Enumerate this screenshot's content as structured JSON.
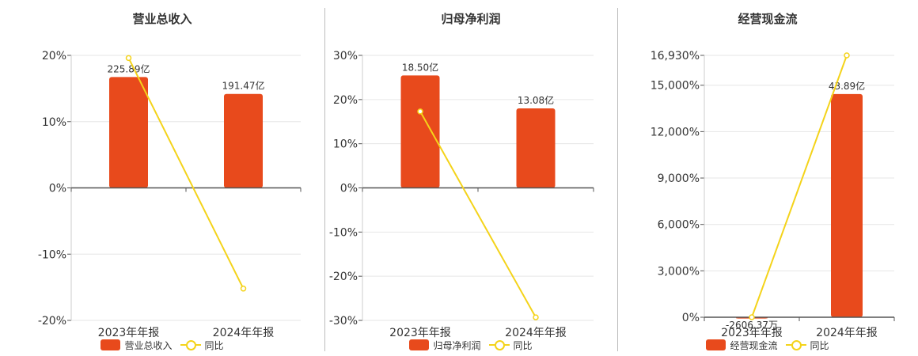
{
  "colors": {
    "bar": "#e84a1c",
    "line": "#f4d31a",
    "axis": "#555555",
    "grid": "#e6e6e6",
    "divider": "#bcbcbc"
  },
  "chart_data": [
    {
      "type": "bar",
      "title": "营业总收入",
      "categories": [
        "2023年年报",
        "2024年年报"
      ],
      "bar_series": {
        "name": "营业总收入",
        "values": [
          225.89,
          191.47
        ],
        "labels": [
          "225.89亿",
          "191.47亿"
        ]
      },
      "line_series": {
        "name": "同比",
        "values": [
          19.6,
          -15.2
        ]
      },
      "bar_ylim": [
        -270,
        270
      ],
      "yoy_ylim": [
        -20,
        20
      ],
      "yticks": [
        20,
        10,
        0,
        -10,
        -20
      ],
      "ytick_labels": [
        "20%",
        "10%",
        "0%",
        "-10%",
        "-20%"
      ],
      "legend": [
        "营业总收入",
        "同比"
      ],
      "legend_position": "bottom",
      "grid": true
    },
    {
      "type": "bar",
      "title": "归母净利润",
      "categories": [
        "2023年年报",
        "2024年年报"
      ],
      "bar_series": {
        "name": "归母净利润",
        "values": [
          18.5,
          13.08
        ],
        "labels": [
          "18.50亿",
          "13.08亿"
        ]
      },
      "line_series": {
        "name": "同比",
        "values": [
          17.3,
          -29.3
        ]
      },
      "bar_ylim": [
        -21.8,
        21.8
      ],
      "yoy_ylim": [
        -30,
        30
      ],
      "yticks": [
        30,
        20,
        10,
        0,
        -10,
        -20,
        -30
      ],
      "ytick_labels": [
        "30%",
        "20%",
        "10%",
        "0%",
        "-10%",
        "-20%",
        "-30%"
      ],
      "legend": [
        "归母净利润",
        "同比"
      ],
      "legend_position": "bottom",
      "grid": true
    },
    {
      "type": "bar",
      "title": "经营现金流",
      "categories": [
        "2023年年报",
        "2024年年报"
      ],
      "bar_series": {
        "name": "经营现金流",
        "values": [
          -0.26,
          43.89
        ],
        "labels": [
          "-2606.37万",
          "43.89亿"
        ]
      },
      "line_series": {
        "name": "同比",
        "values": [
          0,
          16930
        ]
      },
      "bar_ylim": [
        0,
        51.5
      ],
      "yoy_ylim": [
        0,
        16930
      ],
      "yticks": [
        16930,
        15000,
        12000,
        9000,
        6000,
        3000,
        0
      ],
      "ytick_labels": [
        "16,930%",
        "15,000%",
        "12,000%",
        "9,000%",
        "6,000%",
        "3,000%",
        "0%"
      ],
      "legend": [
        "经营现金流",
        "同比"
      ],
      "legend_position": "bottom",
      "grid": true
    }
  ]
}
